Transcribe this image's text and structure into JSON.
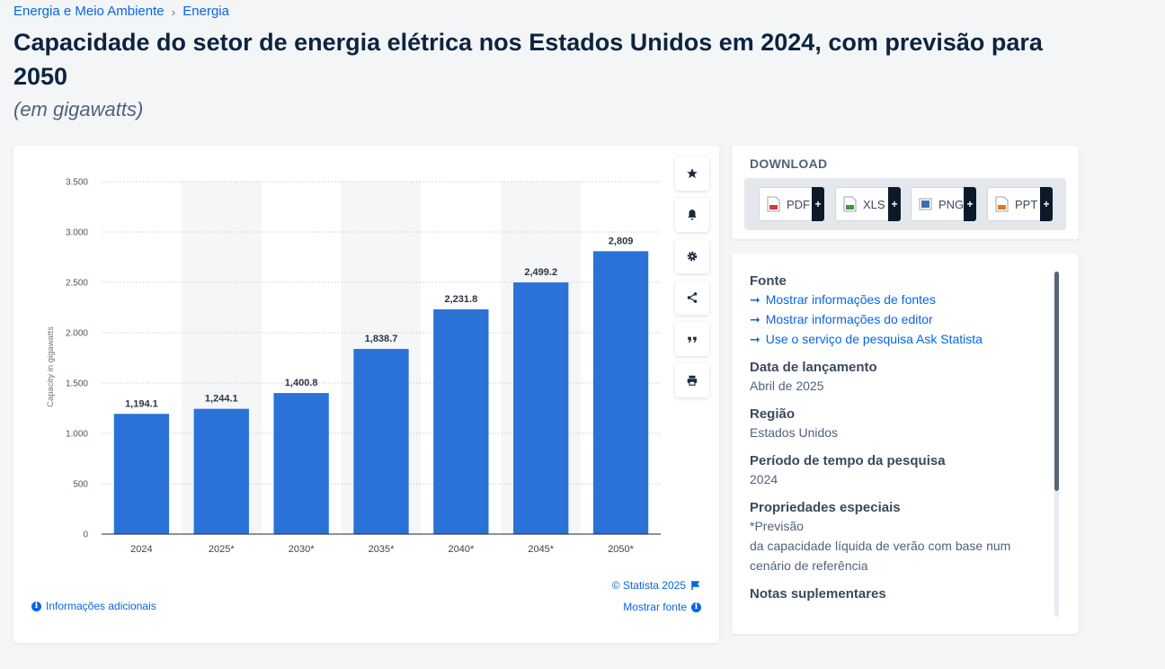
{
  "breadcrumb": {
    "item1": "Energia e Meio Ambiente",
    "item2": "Energia"
  },
  "title": "Capacidade do setor de energia elétrica nos Estados Unidos em 2024, com previsão para 2050",
  "subtitle": "(em gigawatts)",
  "chart_data": {
    "type": "bar",
    "categories": [
      "2024",
      "2025*",
      "2030*",
      "2035*",
      "2040*",
      "2045*",
      "2050*"
    ],
    "values": [
      1194.1,
      1244.1,
      1400.8,
      1838.7,
      2231.8,
      2499.2,
      2809
    ],
    "value_labels": [
      "1,194.1",
      "1,244.1",
      "1,400.8",
      "1,838.7",
      "2,231.8",
      "2,499.2",
      "2,809"
    ],
    "ylabel": "Capacity in gigawatts",
    "ylim": [
      0,
      3500
    ],
    "yticks": [
      0,
      500,
      1000,
      1500,
      2000,
      2500,
      3000,
      3500
    ],
    "ytick_labels": [
      "0",
      "500",
      "1.000",
      "1.500",
      "2.000",
      "2.500",
      "3.000",
      "3.500"
    ],
    "bar_color": "#2a72d8",
    "grid": true
  },
  "tools": [
    "star-icon",
    "bell-icon",
    "gear-icon",
    "share-icon",
    "quote-icon",
    "print-icon"
  ],
  "chart_footer": {
    "copyright": "© Statista 2025",
    "extra_info": "Informações adicionais",
    "show_source": "Mostrar fonte"
  },
  "download": {
    "title": "DOWNLOAD",
    "buttons": [
      {
        "label": "PDF",
        "color": "#e0352b"
      },
      {
        "label": "XLS",
        "color": "#3a9b3a"
      },
      {
        "label": "PNG",
        "color": "#3a6fb5"
      },
      {
        "label": "PPT",
        "color": "#e07a1f"
      }
    ],
    "plus": "+"
  },
  "info": {
    "source_heading": "Fonte",
    "links": [
      "Mostrar informações de fontes",
      "Mostrar informações do editor",
      "Use o serviço de pesquisa Ask Statista"
    ],
    "release_heading": "Data de lançamento",
    "release_value": "Abril de 2025",
    "region_heading": "Região",
    "region_value": "Estados Unidos",
    "period_heading": "Período de tempo da pesquisa",
    "period_value": "2024",
    "special_heading": "Propriedades especiais",
    "special_value1": "*Previsão",
    "special_value2": "da capacidade líquida de verão com base num cenário de referência",
    "notes_heading": "Notas suplementares"
  }
}
